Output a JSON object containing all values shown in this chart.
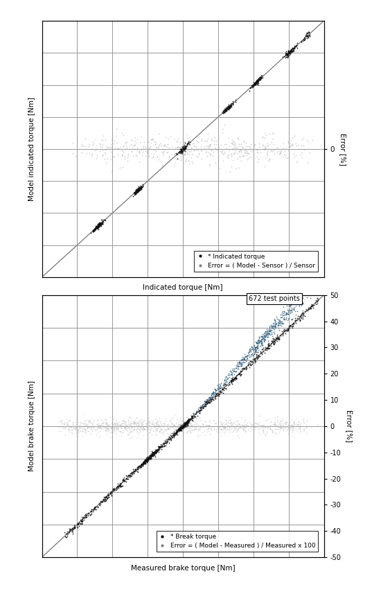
{
  "plot1": {
    "xlabel": "Indicated torque [Nm]",
    "ylabel": "Model indicated torque [Nm]",
    "right_ylabel": "Error [%]",
    "legend_line1": "* Indicated torque",
    "legend_line2": "Error = ( Model - Sensor ) / Sensor",
    "test_points_label": "672 test points",
    "xlim": [
      -250,
      250
    ],
    "ylim": [
      -250,
      250
    ],
    "right_ylim": [
      -1,
      1
    ],
    "right_ytick_val": 0,
    "grid_color": "#888888",
    "scatter_color_black": "#111111",
    "scatter_color_gray": "#bbbbbb",
    "diagonal_color": "#777777",
    "n_xticks": 9,
    "n_yticks": 9
  },
  "plot2": {
    "xlabel": "Measured brake torque [Nm]",
    "ylabel": "Model brake torque [Nm]",
    "right_ylabel": "Error [%]",
    "legend_line1": "* Break torque",
    "legend_line2": "Error = ( Model - Measured ) / Measured x 100",
    "xlim": [
      -250,
      250
    ],
    "ylim": [
      -250,
      250
    ],
    "right_ylim": [
      -50,
      50
    ],
    "right_yticks": [
      -50,
      -40,
      -30,
      -20,
      -10,
      0,
      10,
      20,
      30,
      40,
      50
    ],
    "grid_color": "#888888",
    "scatter_color_black": "#111111",
    "scatter_color_gray": "#bbbbbb",
    "scatter_color_teal": "#2a5a7a",
    "diagonal_color": "#777777"
  },
  "figure_bg": "#ffffff",
  "plot_bg": "#ffffff"
}
